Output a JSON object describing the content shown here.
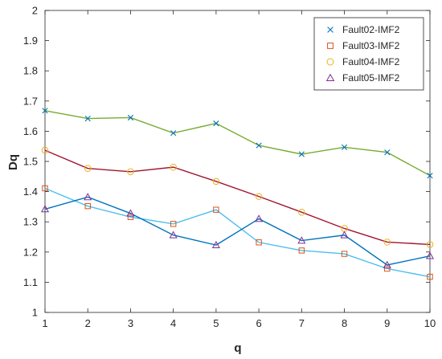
{
  "chart_data": {
    "type": "line",
    "title": "",
    "xlabel": "q",
    "ylabel": "Dq",
    "xlim": [
      1,
      10
    ],
    "ylim": [
      1,
      2
    ],
    "x": [
      1,
      2,
      3,
      4,
      5,
      6,
      7,
      8,
      9,
      10
    ],
    "xticks": [
      "1",
      "2",
      "3",
      "4",
      "5",
      "6",
      "7",
      "8",
      "9",
      "10"
    ],
    "yticks": [
      "1",
      "1.1",
      "1.2",
      "1.3",
      "1.4",
      "1.5",
      "1.6",
      "1.7",
      "1.8",
      "1.9",
      "2"
    ],
    "grid": false,
    "legend_position": "top-right",
    "series": [
      {
        "name": "Fault02-IMF2",
        "marker": "x",
        "marker_color": "#0072BD",
        "line_color": "#77AC30",
        "values": [
          1.668,
          1.642,
          1.645,
          1.594,
          1.626,
          1.553,
          1.524,
          1.547,
          1.53,
          1.453
        ]
      },
      {
        "name": "Fault03-IMF2",
        "marker": "square",
        "marker_color": "#D95319",
        "line_color": "#4DBEEE",
        "values": [
          1.411,
          1.352,
          1.316,
          1.293,
          1.34,
          1.232,
          1.205,
          1.194,
          1.145,
          1.118
        ]
      },
      {
        "name": "Fault04-IMF2",
        "marker": "circle",
        "marker_color": "#EDB120",
        "line_color": "#A2142F",
        "values": [
          1.537,
          1.477,
          1.466,
          1.481,
          1.434,
          1.384,
          1.332,
          1.278,
          1.233,
          1.225
        ]
      },
      {
        "name": "Fault05-IMF2",
        "marker": "triangle",
        "marker_color": "#7E2F8E",
        "line_color": "#0072BD",
        "values": [
          1.342,
          1.382,
          1.328,
          1.256,
          1.223,
          1.31,
          1.238,
          1.256,
          1.157,
          1.187
        ]
      }
    ]
  }
}
